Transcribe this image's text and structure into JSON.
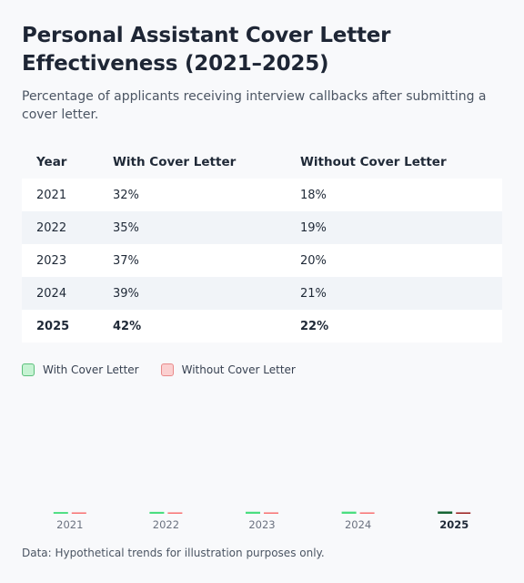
{
  "title": "Personal Assistant Cover Letter Effectiveness (2021–2025)",
  "subtitle": "Percentage of applicants receiving interview callbacks after submitting a cover letter.",
  "table": {
    "headers": [
      "Year",
      "With Cover Letter",
      "Without Cover Letter"
    ],
    "rows": [
      [
        "2021",
        "32%",
        "18%"
      ],
      [
        "2022",
        "35%",
        "19%"
      ],
      [
        "2023",
        "37%",
        "20%"
      ],
      [
        "2024",
        "39%",
        "21%"
      ],
      [
        "2025",
        "42%",
        "22%"
      ]
    ]
  },
  "legend": {
    "with_label": "With Cover Letter",
    "without_label": "Without Cover Letter"
  },
  "colors": {
    "with_fill": "#c6f3d3",
    "with_border": "#5cc07c",
    "with_bar": "#4ade80",
    "with_bar_highlight": "#166534",
    "with_text_highlight": "#1f7a3a",
    "without_fill": "#fbd0d0",
    "without_border": "#e88a8a",
    "without_bar": "#f87171",
    "without_bar_highlight": "#991b1b",
    "without_text_highlight": "#b91c1c"
  },
  "footnote": "Data: Hypothetical trends for illustration purposes only.",
  "chart_data": {
    "type": "bar",
    "title": "Personal Assistant Cover Letter Effectiveness (2021–2025)",
    "subtitle": "Percentage of applicants receiving interview callbacks after submitting a cover letter.",
    "categories": [
      "2021",
      "2022",
      "2023",
      "2024",
      "2025"
    ],
    "highlight_category": "2025",
    "series": [
      {
        "name": "With Cover Letter",
        "values": [
          32,
          35,
          37,
          39,
          42
        ]
      },
      {
        "name": "Without Cover Letter",
        "values": [
          18,
          19,
          20,
          21,
          22
        ]
      }
    ],
    "unit": "%",
    "xlabel": "",
    "ylabel": "",
    "legend_position": "top-left",
    "grid": false
  }
}
